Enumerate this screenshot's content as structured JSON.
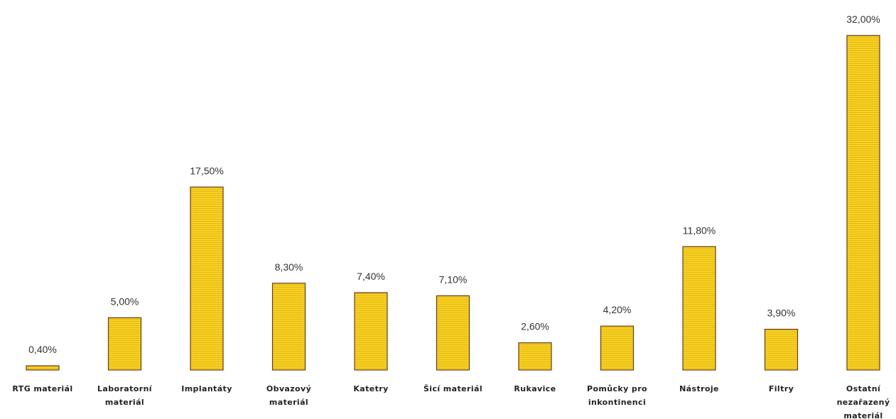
{
  "chart_data": {
    "type": "bar",
    "categories": [
      "RTG materiál",
      "Laboratorní materiál",
      "Implantáty",
      "Obvazový materiál",
      "Katetry",
      "Šicí materiál",
      "Rukavice",
      "Pomůcky pro inkontinenci",
      "Nástroje",
      "Filtry",
      "Ostatní nezařazený materiál"
    ],
    "category_lines": [
      [
        "RTG materiál"
      ],
      [
        "Laboratorní",
        "materiál"
      ],
      [
        "Implantáty"
      ],
      [
        "Obvazový",
        "materiál"
      ],
      [
        "Katetry"
      ],
      [
        "Šicí materiál"
      ],
      [
        "Rukavice"
      ],
      [
        "Pomůcky pro",
        "inkontinenci"
      ],
      [
        "Nástroje"
      ],
      [
        "Filtry"
      ],
      [
        "Ostatní",
        "nezařazený",
        "materiál"
      ]
    ],
    "values": [
      0.4,
      5.0,
      17.5,
      8.3,
      7.4,
      7.1,
      2.6,
      4.2,
      11.8,
      3.9,
      32.0
    ],
    "value_labels": [
      "0,40%",
      "5,00%",
      "17,50%",
      "8,30%",
      "7,40%",
      "7,10%",
      "2,60%",
      "4,20%",
      "11,80%",
      "3,90%",
      "32,00%"
    ],
    "ylim": [
      0,
      32
    ],
    "grid": false,
    "legend": "none",
    "colors": {
      "bar_fill": "#f7d024",
      "bar_stroke": "#6b3a1a",
      "bar_hatch": "#e0b510"
    }
  }
}
